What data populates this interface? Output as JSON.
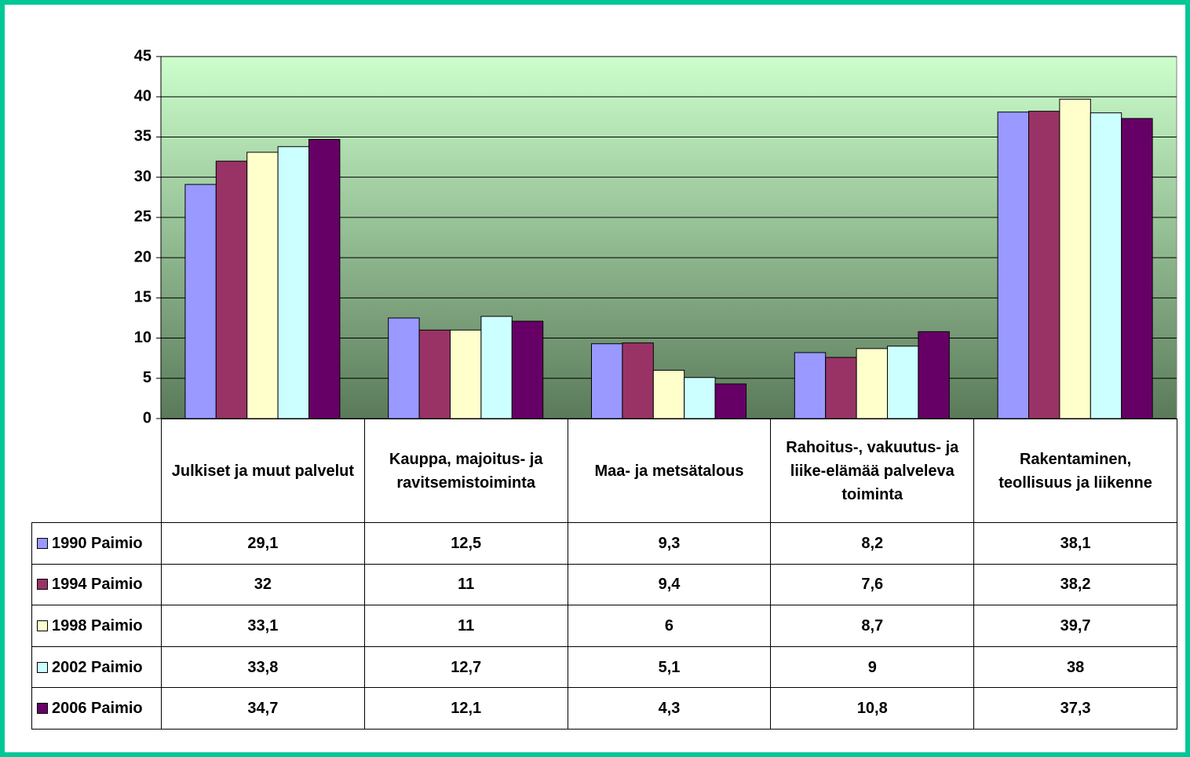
{
  "chart_data": {
    "type": "bar",
    "categories": [
      "Julkiset ja muut palvelut",
      "Kauppa, majoitus- ja ravitsemistoiminta",
      "Maa- ja metsätalous",
      "Rahoitus-, vakuutus- ja liike-elämää palveleva toiminta",
      "Rakentaminen, teollisuus ja liikenne"
    ],
    "series": [
      {
        "name": "1990 Paimio",
        "color": "#9999ff",
        "values": [
          29.1,
          12.5,
          9.3,
          8.2,
          38.1
        ],
        "value_labels": [
          "29,1",
          "12,5",
          "9,3",
          "8,2",
          "38,1"
        ]
      },
      {
        "name": "1994 Paimio",
        "color": "#993366",
        "values": [
          32,
          11,
          9.4,
          7.6,
          38.2
        ],
        "value_labels": [
          "32",
          "11",
          "9,4",
          "7,6",
          "38,2"
        ]
      },
      {
        "name": "1998 Paimio",
        "color": "#ffffcc",
        "values": [
          33.1,
          11,
          6,
          8.7,
          39.7
        ],
        "value_labels": [
          "33,1",
          "11",
          "6",
          "8,7",
          "39,7"
        ]
      },
      {
        "name": "2002 Paimio",
        "color": "#ccffff",
        "values": [
          33.8,
          12.7,
          5.1,
          9,
          38
        ],
        "value_labels": [
          "33,8",
          "12,7",
          "5,1",
          "9",
          "38"
        ]
      },
      {
        "name": "2006 Paimio",
        "color": "#660066",
        "values": [
          34.7,
          12.1,
          4.3,
          10.8,
          37.3
        ],
        "value_labels": [
          "34,7",
          "12,1",
          "4,3",
          "10,8",
          "37,3"
        ]
      }
    ],
    "ylim": [
      0,
      45
    ],
    "yticks": [
      0,
      5,
      10,
      15,
      20,
      25,
      30,
      35,
      40,
      45
    ],
    "grid": true
  }
}
